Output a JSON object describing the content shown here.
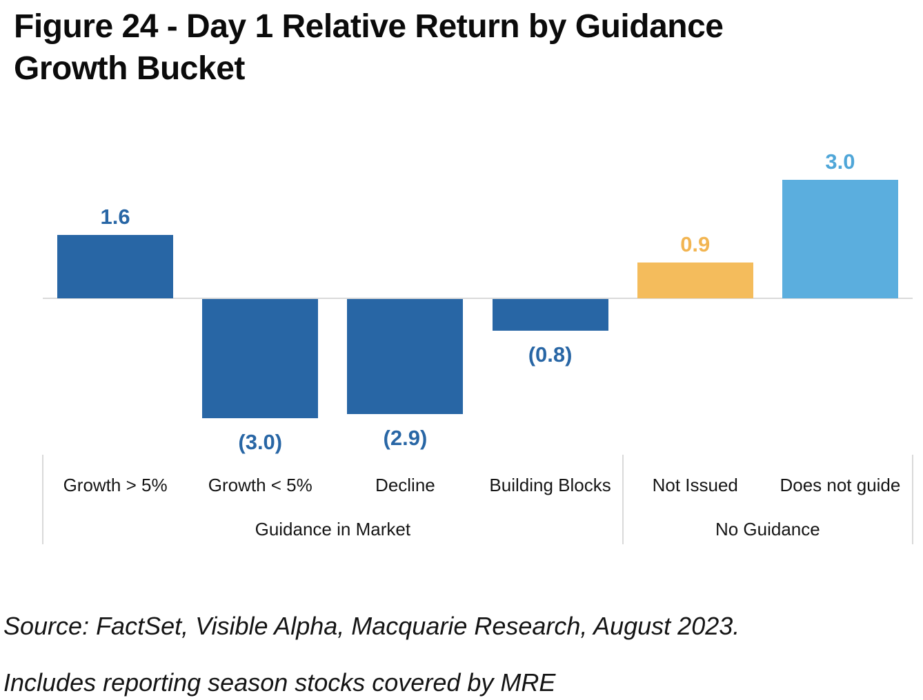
{
  "title": {
    "line1": "Figure 24 - Day 1 Relative Return by Guidance",
    "line2": "Growth Bucket"
  },
  "chart_data": {
    "type": "bar",
    "title": "Figure 24 - Day 1 Relative Return by Guidance Growth Bucket",
    "categories": [
      "Growth > 5%",
      "Growth < 5%",
      "Decline",
      "Building Blocks",
      "Not Issued",
      "Does not guide"
    ],
    "values": [
      1.6,
      -3.0,
      -2.9,
      -0.8,
      0.9,
      3.0
    ],
    "value_labels": [
      "1.6",
      "(3.0)",
      "(2.9)",
      "(0.8)",
      "0.9",
      "3.0"
    ],
    "bar_colors": [
      "#2866A5",
      "#2866A5",
      "#2866A5",
      "#2866A5",
      "#F4BC5C",
      "#5BAEDE"
    ],
    "label_colors": [
      "#2866A5",
      "#2866A5",
      "#2866A5",
      "#2866A5",
      "#F2B552",
      "#4FA6D8"
    ],
    "groups": [
      {
        "label": "Guidance in Market",
        "start": 0,
        "end": 3
      },
      {
        "label": "No Guidance",
        "start": 4,
        "end": 5
      }
    ],
    "xlabel": "",
    "ylabel": "",
    "ylim": [
      -3.5,
      3.5
    ],
    "gridlines": false,
    "legend": false,
    "axis_color": "#D9D9D9",
    "units": "Day 1 relative return, %"
  },
  "footer": {
    "source": "Source: FactSet, Visible Alpha, Macquarie Research, August 2023.",
    "note": "Includes reporting season stocks covered by MRE"
  }
}
